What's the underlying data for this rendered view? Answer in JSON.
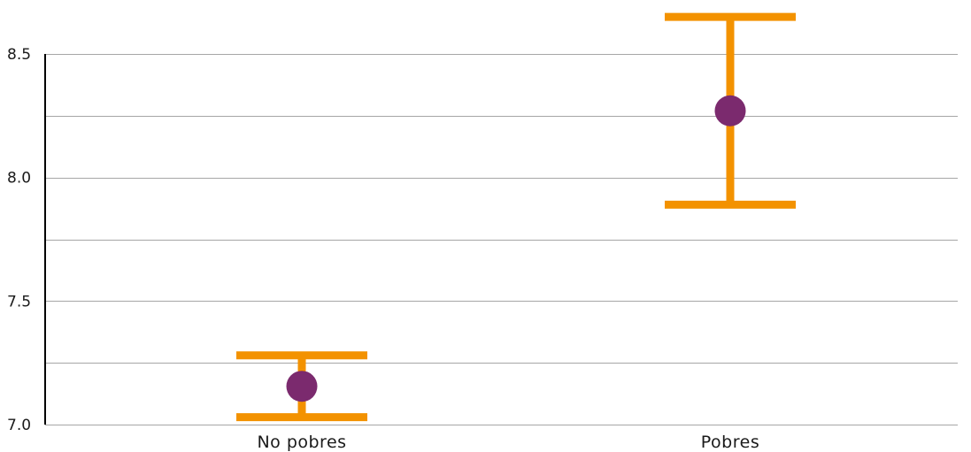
{
  "chart_data": {
    "type": "scatter",
    "title": "",
    "xlabel": "",
    "ylabel": "",
    "categories": [
      "No pobres",
      "Pobres"
    ],
    "points": [
      {
        "category": "No pobres",
        "value": 7.155,
        "lower": 7.03,
        "upper": 7.28
      },
      {
        "category": "Pobres",
        "value": 8.27,
        "lower": 7.89,
        "upper": 8.65
      }
    ],
    "ylim": [
      7.0,
      8.75
    ],
    "yticks": [
      7.0,
      7.5,
      8.0,
      8.5
    ],
    "ytick_labels": [
      "7.0",
      "7.5",
      "8.0",
      "8.5"
    ],
    "grid": true,
    "gridlines": [
      7.0,
      7.25,
      7.5,
      7.75,
      8.0,
      8.25,
      8.5
    ],
    "colors": {
      "marker": "#7b2a6e",
      "errorbar": "#f39200",
      "grid": "#a6a6a6",
      "axis": "#000000"
    }
  }
}
